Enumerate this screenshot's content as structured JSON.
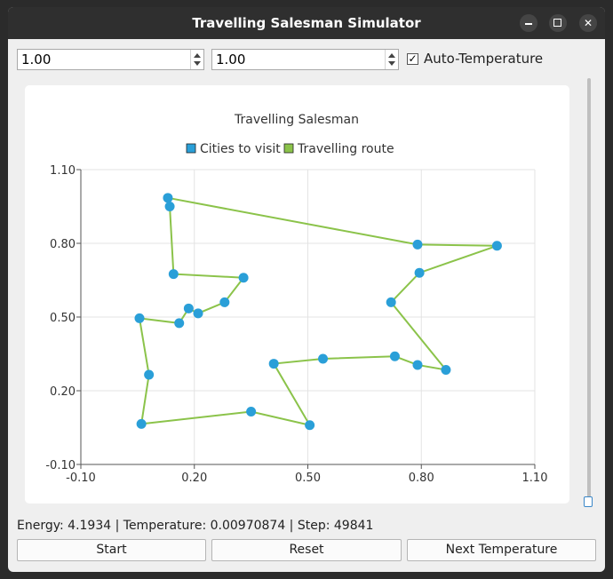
{
  "window": {
    "title": "Travelling Salesman Simulator"
  },
  "controls": {
    "spin1_value": "1.00",
    "spin2_value": "1.00",
    "auto_temperature_label": "Auto-Temperature",
    "auto_temperature_checked": true
  },
  "status": "Energy: 4.1934 | Temperature: 0.00970874 | Step: 49841",
  "buttons": {
    "start": "Start",
    "reset": "Reset",
    "next_temperature": "Next Temperature"
  },
  "colors": {
    "cities": "#2a9fd8",
    "route": "#8bc34a"
  },
  "chart_data": {
    "type": "scatter",
    "title": "Travelling Salesman",
    "legend": [
      "Cities to visit",
      "Travelling route"
    ],
    "legend_position": "top",
    "xlim": [
      -0.1,
      1.1
    ],
    "ylim": [
      -0.1,
      1.1
    ],
    "xticks": [
      "-0.10",
      "0.20",
      "0.50",
      "0.80",
      "1.10"
    ],
    "yticks": [
      "-0.10",
      "0.20",
      "0.50",
      "0.80",
      "1.10"
    ],
    "grid": true,
    "route": [
      [
        0.13,
        0.985
      ],
      [
        0.135,
        0.95
      ],
      [
        0.145,
        0.675
      ],
      [
        0.33,
        0.66
      ],
      [
        0.28,
        0.56
      ],
      [
        0.21,
        0.515
      ],
      [
        0.185,
        0.535
      ],
      [
        0.16,
        0.475
      ],
      [
        0.055,
        0.495
      ],
      [
        0.08,
        0.265
      ],
      [
        0.06,
        0.065
      ],
      [
        0.35,
        0.115
      ],
      [
        0.505,
        0.06
      ],
      [
        0.41,
        0.31
      ],
      [
        0.54,
        0.33
      ],
      [
        0.73,
        0.34
      ],
      [
        0.79,
        0.305
      ],
      [
        0.865,
        0.285
      ],
      [
        0.72,
        0.56
      ],
      [
        0.795,
        0.68
      ],
      [
        1.0,
        0.79
      ],
      [
        0.79,
        0.795
      ],
      [
        0.13,
        0.985
      ]
    ],
    "cities": [
      [
        0.13,
        0.985
      ],
      [
        0.135,
        0.95
      ],
      [
        0.145,
        0.675
      ],
      [
        0.33,
        0.66
      ],
      [
        0.28,
        0.56
      ],
      [
        0.21,
        0.515
      ],
      [
        0.185,
        0.535
      ],
      [
        0.16,
        0.475
      ],
      [
        0.055,
        0.495
      ],
      [
        0.08,
        0.265
      ],
      [
        0.06,
        0.065
      ],
      [
        0.35,
        0.115
      ],
      [
        0.505,
        0.06
      ],
      [
        0.41,
        0.31
      ],
      [
        0.54,
        0.33
      ],
      [
        0.73,
        0.34
      ],
      [
        0.79,
        0.305
      ],
      [
        0.865,
        0.285
      ],
      [
        0.72,
        0.56
      ],
      [
        0.795,
        0.68
      ],
      [
        1.0,
        0.79
      ],
      [
        0.79,
        0.795
      ]
    ]
  }
}
